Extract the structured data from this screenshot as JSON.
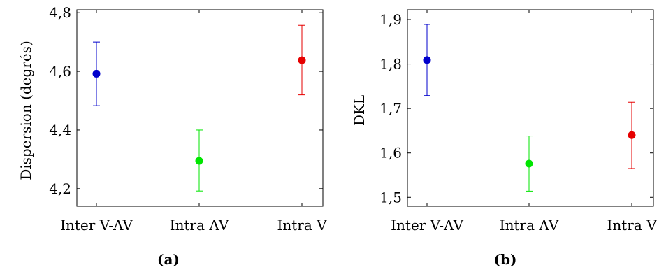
{
  "chart_data": [
    {
      "type": "scatter",
      "caption": "(a)",
      "ylabel": "Dispersion (degrés)",
      "categories": [
        "Inter V-AV",
        "Intra AV",
        "Intra V"
      ],
      "values": [
        4.592,
        4.295,
        4.638
      ],
      "error_low": [
        4.483,
        4.192,
        4.52
      ],
      "error_high": [
        4.7,
        4.4,
        4.757
      ],
      "colors": [
        "#0000cc",
        "#00e600",
        "#e60000"
      ],
      "ylim": [
        4.14,
        4.81
      ],
      "yticks": [
        4.2,
        4.4,
        4.6,
        4.8
      ],
      "ytick_labels": [
        "4,2",
        "4,4",
        "4,6",
        "4,8"
      ]
    },
    {
      "type": "scatter",
      "caption": "(b)",
      "ylabel": "DKL",
      "categories": [
        "Inter V-AV",
        "Intra AV",
        "Intra V"
      ],
      "values": [
        1.809,
        1.576,
        1.64
      ],
      "error_low": [
        1.729,
        1.514,
        1.565
      ],
      "error_high": [
        1.889,
        1.638,
        1.714
      ],
      "colors": [
        "#0000cc",
        "#00e600",
        "#e60000"
      ],
      "ylim": [
        1.48,
        1.922
      ],
      "yticks": [
        1.5,
        1.6,
        1.7,
        1.8,
        1.9
      ],
      "ytick_labels": [
        "1,5",
        "1,6",
        "1,7",
        "1,8",
        "1,9"
      ]
    }
  ]
}
